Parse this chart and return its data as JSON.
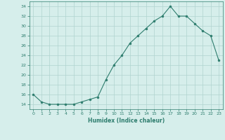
{
  "xlabel": "Humidex (Indice chaleur)",
  "x": [
    0,
    1,
    2,
    3,
    4,
    5,
    6,
    7,
    8,
    9,
    10,
    11,
    12,
    13,
    14,
    15,
    16,
    17,
    18,
    19,
    20,
    21,
    22,
    23
  ],
  "y": [
    16,
    14.5,
    14,
    14,
    14,
    14,
    14.5,
    15,
    15.5,
    19,
    22,
    24,
    26.5,
    28,
    29.5,
    31,
    32,
    34,
    32,
    32,
    30.5,
    29,
    28,
    23
  ],
  "ylim": [
    13,
    35
  ],
  "yticks": [
    14,
    16,
    18,
    20,
    22,
    24,
    26,
    28,
    30,
    32,
    34
  ],
  "xticks": [
    0,
    1,
    2,
    3,
    4,
    5,
    6,
    7,
    8,
    9,
    10,
    11,
    12,
    13,
    14,
    15,
    16,
    17,
    18,
    19,
    20,
    21,
    22,
    23
  ],
  "line_color": "#2e7d6e",
  "marker_color": "#2e7d6e",
  "bg_color": "#d6eeeb",
  "grid_color": "#b0d4cf",
  "tick_label_color": "#2e7d6e",
  "xlabel_color": "#2e7d6e"
}
